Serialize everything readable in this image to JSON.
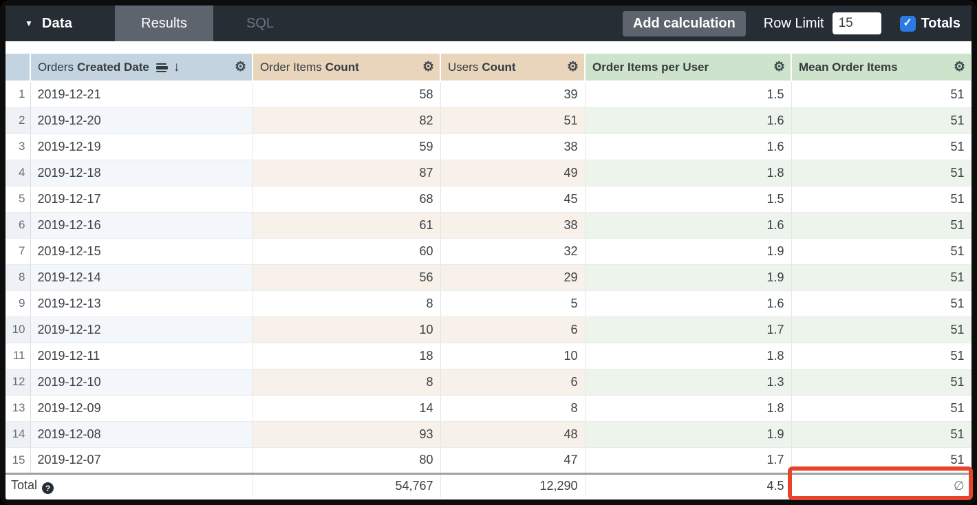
{
  "topbar": {
    "data_label": "Data",
    "tabs": [
      {
        "label": "Results",
        "active": true
      },
      {
        "label": "SQL",
        "active": false
      }
    ],
    "add_calculation_label": "Add calculation",
    "row_limit_label": "Row Limit",
    "row_limit_value": "15",
    "totals_label": "Totals",
    "totals_checked": true
  },
  "icons": {
    "caret_glyph": "▼",
    "gear_glyph": "⚙",
    "sort_desc_arrow_glyph": "↓",
    "check_glyph": "✓",
    "help_glyph": "?",
    "null_glyph": "∅"
  },
  "colors": {
    "topbar_bg": "#262d35",
    "active_tab_bg": "#5d646d",
    "dimension_header_bg": "#c3d3e0",
    "measure_header_bg": "#e9d5bc",
    "table_calc_header_bg": "#cde3cb",
    "checkbox_blue": "#2b7ce2",
    "annotation_red": "#e8432b"
  },
  "table": {
    "columns": [
      {
        "label_regular": "Orders",
        "label_bold": "Created Date",
        "type": "dimension",
        "sorted_descending": true
      },
      {
        "label_regular": "Order Items",
        "label_bold": "Count",
        "type": "measure"
      },
      {
        "label_regular": "Users",
        "label_bold": "Count",
        "type": "measure"
      },
      {
        "label_regular": "",
        "label_bold": "Order Items per User",
        "type": "table_calculation"
      },
      {
        "label_regular": "",
        "label_bold": "Mean Order Items",
        "type": "table_calculation"
      }
    ],
    "rows": [
      {
        "num": "1",
        "date": "2019-12-21",
        "order_items": "58",
        "users": "39",
        "per_user": "1.5",
        "mean": "51"
      },
      {
        "num": "2",
        "date": "2019-12-20",
        "order_items": "82",
        "users": "51",
        "per_user": "1.6",
        "mean": "51"
      },
      {
        "num": "3",
        "date": "2019-12-19",
        "order_items": "59",
        "users": "38",
        "per_user": "1.6",
        "mean": "51"
      },
      {
        "num": "4",
        "date": "2019-12-18",
        "order_items": "87",
        "users": "49",
        "per_user": "1.8",
        "mean": "51"
      },
      {
        "num": "5",
        "date": "2019-12-17",
        "order_items": "68",
        "users": "45",
        "per_user": "1.5",
        "mean": "51"
      },
      {
        "num": "6",
        "date": "2019-12-16",
        "order_items": "61",
        "users": "38",
        "per_user": "1.6",
        "mean": "51"
      },
      {
        "num": "7",
        "date": "2019-12-15",
        "order_items": "60",
        "users": "32",
        "per_user": "1.9",
        "mean": "51"
      },
      {
        "num": "8",
        "date": "2019-12-14",
        "order_items": "56",
        "users": "29",
        "per_user": "1.9",
        "mean": "51"
      },
      {
        "num": "9",
        "date": "2019-12-13",
        "order_items": "8",
        "users": "5",
        "per_user": "1.6",
        "mean": "51"
      },
      {
        "num": "10",
        "date": "2019-12-12",
        "order_items": "10",
        "users": "6",
        "per_user": "1.7",
        "mean": "51"
      },
      {
        "num": "11",
        "date": "2019-12-11",
        "order_items": "18",
        "users": "10",
        "per_user": "1.8",
        "mean": "51"
      },
      {
        "num": "12",
        "date": "2019-12-10",
        "order_items": "8",
        "users": "6",
        "per_user": "1.3",
        "mean": "51"
      },
      {
        "num": "13",
        "date": "2019-12-09",
        "order_items": "14",
        "users": "8",
        "per_user": "1.8",
        "mean": "51"
      },
      {
        "num": "14",
        "date": "2019-12-08",
        "order_items": "93",
        "users": "48",
        "per_user": "1.9",
        "mean": "51"
      },
      {
        "num": "15",
        "date": "2019-12-07",
        "order_items": "80",
        "users": "47",
        "per_user": "1.7",
        "mean": "51"
      }
    ],
    "total": {
      "label": "Total",
      "order_items": "54,767",
      "users": "12,290",
      "per_user": "4.5",
      "mean": "∅"
    }
  }
}
